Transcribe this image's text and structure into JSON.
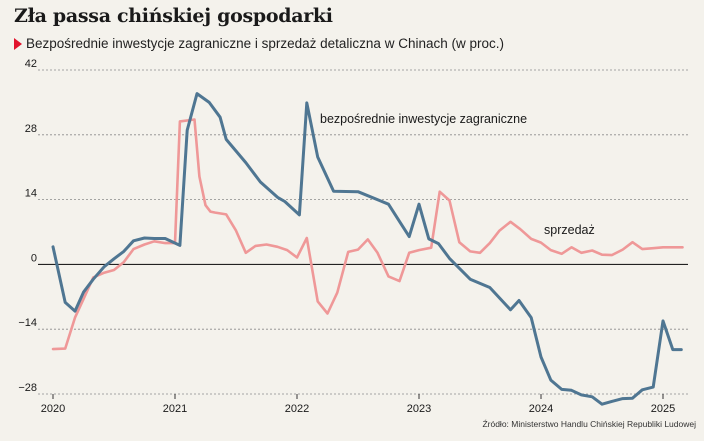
{
  "header": {
    "title": "Zła passa chińskiej gospodarki",
    "subtitle": "Bezpośrednie inwestycje zagraniczne i sprzedaż detaliczna w Chinach (w proc.)"
  },
  "source": "Źródło: Ministerstwo Handlu Chińskiej Republiki Ludowej",
  "colors": {
    "fdi": "#4f7692",
    "retail": "#ef9898",
    "zero_line": "#222222",
    "grid": "#8a8a8a"
  },
  "chart_data": {
    "type": "line",
    "title": "Zła passa chińskiej gospodarki",
    "xlabel": "",
    "ylabel": "",
    "ylim": [
      -28,
      42
    ],
    "y_ticks": [
      42,
      28,
      14,
      0,
      -14,
      -28
    ],
    "xlim": [
      2020.0,
      2025.2
    ],
    "x_ticks": [
      2020,
      2021,
      2022,
      2023,
      2024,
      2025
    ],
    "grid": true,
    "series": [
      {
        "name": "bezpośrednie inwestycje zagraniczne",
        "color": "#4f7692",
        "x": [
          2020.0,
          2020.1,
          2020.18,
          2020.25,
          2020.33,
          2020.42,
          2020.5,
          2020.58,
          2020.66,
          2020.75,
          2020.83,
          2020.92,
          2021.04,
          2021.1,
          2021.18,
          2021.28,
          2021.37,
          2021.42,
          2021.58,
          2021.7,
          2021.84,
          2021.9,
          2022.02,
          2022.08,
          2022.17,
          2022.3,
          2022.5,
          2022.75,
          2022.84,
          2022.92,
          2023.0,
          2023.08,
          2023.16,
          2023.25,
          2023.42,
          2023.58,
          2023.75,
          2023.82,
          2023.92,
          2024.0,
          2024.08,
          2024.17,
          2024.25,
          2024.33,
          2024.42,
          2024.5,
          2024.58,
          2024.67,
          2024.75,
          2024.83,
          2024.92,
          2025.0,
          2025.08,
          2025.15
        ],
        "y": [
          3.8,
          -8.2,
          -10.1,
          -6.0,
          -3.2,
          -0.5,
          1.2,
          2.8,
          5.1,
          5.7,
          5.6,
          5.6,
          4.1,
          29.0,
          36.9,
          35.0,
          31.8,
          27.0,
          22.0,
          17.8,
          14.5,
          13.6,
          10.7,
          34.9,
          23.2,
          15.8,
          15.7,
          13.0,
          9.3,
          6.0,
          13.0,
          5.5,
          4.5,
          1.3,
          -3.2,
          -5.0,
          -9.8,
          -7.8,
          -11.5,
          -20.0,
          -25.0,
          -27.0,
          -27.2,
          -28.2,
          -28.6,
          -30.2,
          -29.6,
          -29.0,
          -28.9,
          -27.1,
          -26.5,
          -12.2,
          -18.4,
          -18.4
        ]
      },
      {
        "name": "sprzedaż",
        "color": "#ef9898",
        "x": [
          2020.0,
          2020.1,
          2020.18,
          2020.25,
          2020.33,
          2020.42,
          2020.5,
          2020.58,
          2020.66,
          2020.75,
          2020.83,
          2020.92,
          2021.0,
          2021.04,
          2021.16,
          2021.2,
          2021.25,
          2021.29,
          2021.33,
          2021.42,
          2021.5,
          2021.58,
          2021.66,
          2021.75,
          2021.84,
          2021.92,
          2022.0,
          2022.08,
          2022.17,
          2022.25,
          2022.33,
          2022.42,
          2022.5,
          2022.58,
          2022.66,
          2022.75,
          2022.84,
          2022.92,
          2023.0,
          2023.1,
          2023.17,
          2023.25,
          2023.33,
          2023.42,
          2023.5,
          2023.58,
          2023.66,
          2023.75,
          2023.83,
          2023.92,
          2024.0,
          2024.08,
          2024.17,
          2024.25,
          2024.33,
          2024.42,
          2024.5,
          2024.58,
          2024.67,
          2024.75,
          2024.83,
          2024.92,
          2025.0,
          2025.08,
          2025.16
        ],
        "y": [
          -18.3,
          -18.2,
          -11.5,
          -7.5,
          -2.8,
          -1.8,
          -1.2,
          0.5,
          3.3,
          4.3,
          5.0,
          4.6,
          4.6,
          30.9,
          31.3,
          19.0,
          12.8,
          11.4,
          11.2,
          10.8,
          7.3,
          2.5,
          4.0,
          4.3,
          3.8,
          3.1,
          1.5,
          5.7,
          -8.0,
          -10.6,
          -6.1,
          2.7,
          3.2,
          5.4,
          2.5,
          -2.6,
          -3.6,
          2.5,
          3.1,
          3.6,
          15.7,
          13.8,
          4.8,
          2.8,
          2.5,
          4.6,
          7.3,
          9.2,
          7.6,
          5.5,
          4.7,
          3.1,
          2.3,
          3.7,
          2.5,
          3.0,
          2.1,
          2.0,
          3.2,
          4.8,
          3.3,
          3.5,
          3.7,
          3.7,
          3.7
        ]
      }
    ]
  },
  "annotations": {
    "fdi_label": "bezpośrednie inwestycje zagraniczne",
    "retail_label": "sprzedaż"
  }
}
